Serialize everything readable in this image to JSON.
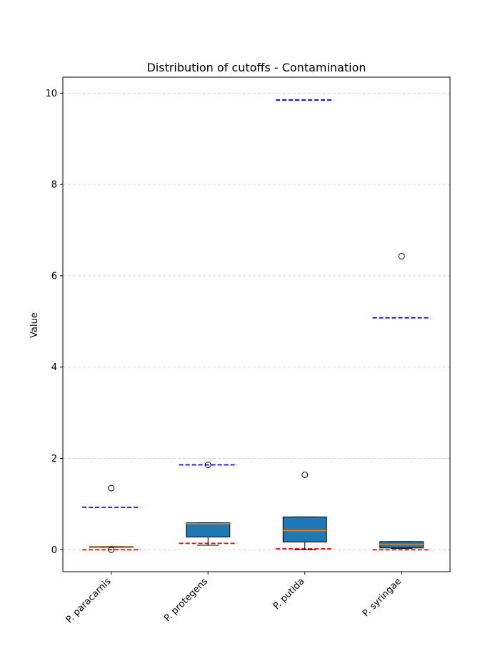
{
  "chart_data": {
    "type": "box",
    "title": "Distribution of cutoffs - Contamination",
    "xlabel": "",
    "ylabel": "Value",
    "ylim": [
      -0.48,
      10.35
    ],
    "yticks": [
      0,
      2,
      4,
      6,
      8,
      10
    ],
    "grid": "y, dashed",
    "categories": [
      "P. paracarnis",
      "P. protegens",
      "P. putida",
      "P. syringae"
    ],
    "boxes": [
      {
        "category": "P. paracarnis",
        "whislo": 0.05,
        "q1": 0.05,
        "med": 0.06,
        "q3": 0.07,
        "whishi": 0.07,
        "fliers": [
          1.35,
          0.0
        ]
      },
      {
        "category": "P. protegens",
        "whislo": 0.1,
        "q1": 0.28,
        "med": 0.57,
        "q3": 0.59,
        "whishi": 0.59,
        "fliers": [
          1.86
        ]
      },
      {
        "category": "P. putida",
        "whislo": 0.0,
        "q1": 0.17,
        "med": 0.42,
        "q3": 0.72,
        "whishi": 0.72,
        "fliers": [
          1.64
        ]
      },
      {
        "category": "P. syringae",
        "whislo": 0.03,
        "q1": 0.04,
        "med": 0.12,
        "q3": 0.18,
        "whishi": 0.18,
        "fliers": [
          6.43
        ]
      }
    ],
    "reference_lines": {
      "upper_color": "#0000ff",
      "lower_color": "#ff0000",
      "upper": [
        0.93,
        1.86,
        9.85,
        5.08
      ],
      "lower": [
        0.0,
        0.14,
        0.02,
        0.0
      ]
    },
    "colors": {
      "box_fill": "#1f77b4",
      "median": "#ff7f0e",
      "grid": "#cccccc"
    }
  }
}
